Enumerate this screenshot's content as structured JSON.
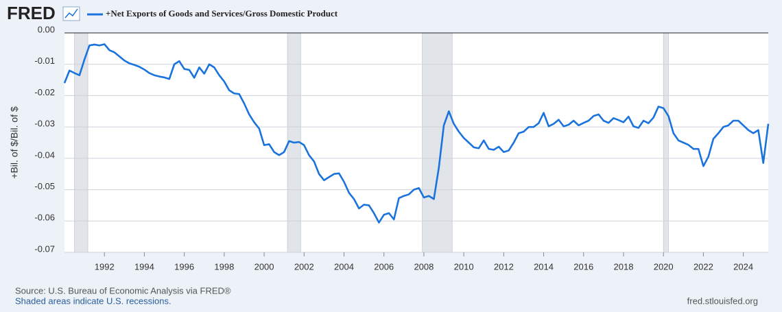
{
  "chart_data": {
    "type": "line",
    "logo": "FRED",
    "y_label": "+Bil. of $/Bil. of $",
    "source": "Source: U.S. Bureau of Economic Analysis via FRED®",
    "note": "Shaded areas indicate U.S. recessions.",
    "site": "fred.stlouisfed.org",
    "x": [
      1990,
      1990.25,
      1990.5,
      1990.75,
      1991,
      1991.25,
      1991.5,
      1991.75,
      1992,
      1992.25,
      1992.5,
      1992.75,
      1993,
      1993.25,
      1993.5,
      1993.75,
      1994,
      1994.25,
      1994.5,
      1994.75,
      1995,
      1995.25,
      1995.5,
      1995.75,
      1996,
      1996.25,
      1996.5,
      1996.75,
      1997,
      1997.25,
      1997.5,
      1997.75,
      1998,
      1998.25,
      1998.5,
      1998.75,
      1999,
      1999.25,
      1999.5,
      1999.75,
      2000,
      2000.25,
      2000.5,
      2000.75,
      2001,
      2001.25,
      2001.5,
      2001.75,
      2002,
      2002.25,
      2002.5,
      2002.75,
      2003,
      2003.25,
      2003.5,
      2003.75,
      2004,
      2004.25,
      2004.5,
      2004.75,
      2005,
      2005.25,
      2005.5,
      2005.75,
      2006,
      2006.25,
      2006.5,
      2006.75,
      2007,
      2007.25,
      2007.5,
      2007.75,
      2008,
      2008.25,
      2008.5,
      2008.75,
      2009,
      2009.25,
      2009.5,
      2009.75,
      2010,
      2010.25,
      2010.5,
      2010.75,
      2011,
      2011.25,
      2011.5,
      2011.75,
      2012,
      2012.25,
      2012.5,
      2012.75,
      2013,
      2013.25,
      2013.5,
      2013.75,
      2014,
      2014.25,
      2014.5,
      2014.75,
      2015,
      2015.25,
      2015.5,
      2015.75,
      2016,
      2016.25,
      2016.5,
      2016.75,
      2017,
      2017.25,
      2017.5,
      2017.75,
      2018,
      2018.25,
      2018.5,
      2018.75,
      2019,
      2019.25,
      2019.5,
      2019.75,
      2020,
      2020.25,
      2020.5,
      2020.75,
      2021,
      2021.25,
      2021.5,
      2021.75,
      2022,
      2022.25,
      2022.5,
      2022.75,
      2023,
      2023.25,
      2023.5,
      2023.75,
      2024,
      2024.25,
      2024.5,
      2024.75,
      2025,
      2025.25
    ],
    "series": [
      {
        "name": "+Net Exports of Goods and Services/Gross Domestic Product",
        "color": "#1a73dd",
        "values": [
          -0.016,
          -0.012,
          -0.0128,
          -0.0135,
          -0.0085,
          -0.004,
          -0.0037,
          -0.004,
          -0.0036,
          -0.0055,
          -0.0062,
          -0.0075,
          -0.0088,
          -0.0097,
          -0.0102,
          -0.0108,
          -0.0117,
          -0.0128,
          -0.0135,
          -0.0139,
          -0.0142,
          -0.0147,
          -0.01,
          -0.009,
          -0.0115,
          -0.0118,
          -0.0143,
          -0.011,
          -0.013,
          -0.01,
          -0.011,
          -0.0135,
          -0.0155,
          -0.0183,
          -0.0193,
          -0.0195,
          -0.0225,
          -0.026,
          -0.0285,
          -0.0305,
          -0.0358,
          -0.0355,
          -0.038,
          -0.039,
          -0.038,
          -0.0345,
          -0.035,
          -0.0348,
          -0.0358,
          -0.039,
          -0.041,
          -0.045,
          -0.047,
          -0.046,
          -0.045,
          -0.0448,
          -0.0475,
          -0.051,
          -0.053,
          -0.056,
          -0.0548,
          -0.055,
          -0.0575,
          -0.0605,
          -0.058,
          -0.0575,
          -0.0595,
          -0.0527,
          -0.052,
          -0.0515,
          -0.05,
          -0.0495,
          -0.0525,
          -0.052,
          -0.053,
          -0.043,
          -0.0295,
          -0.025,
          -0.029,
          -0.0315,
          -0.0335,
          -0.035,
          -0.0365,
          -0.0368,
          -0.0343,
          -0.037,
          -0.0373,
          -0.0363,
          -0.038,
          -0.0375,
          -0.035,
          -0.032,
          -0.0315,
          -0.03,
          -0.03,
          -0.0288,
          -0.0255,
          -0.0298,
          -0.029,
          -0.0277,
          -0.0298,
          -0.0293,
          -0.028,
          -0.0295,
          -0.0287,
          -0.028,
          -0.0265,
          -0.026,
          -0.028,
          -0.0287,
          -0.0272,
          -0.0278,
          -0.0285,
          -0.0267,
          -0.0298,
          -0.0303,
          -0.028,
          -0.0288,
          -0.027,
          -0.0235,
          -0.024,
          -0.0265,
          -0.032,
          -0.0343,
          -0.035,
          -0.0357,
          -0.037,
          -0.037,
          -0.0425,
          -0.0395,
          -0.0338,
          -0.032,
          -0.03,
          -0.0295,
          -0.028,
          -0.028,
          -0.0295,
          -0.031,
          -0.032,
          -0.031,
          -0.0415,
          -0.029
        ]
      }
    ],
    "recessions": [
      [
        1990.5,
        1991.17
      ],
      [
        2001.17,
        2001.83
      ],
      [
        2007.92,
        2009.42
      ],
      [
        2020.0,
        2020.25
      ]
    ],
    "recession_color": "#e1e5ea",
    "xlim": [
      1990,
      2025.25
    ],
    "xticks": [
      1992,
      1994,
      1996,
      1998,
      2000,
      2002,
      2004,
      2006,
      2008,
      2010,
      2012,
      2014,
      2016,
      2018,
      2020,
      2022,
      2024
    ],
    "ylim": [
      -0.07,
      0
    ],
    "yticks": [
      {
        "value": 0,
        "label": "0.00"
      },
      -0.01,
      -0.02,
      -0.03,
      -0.04,
      -0.05,
      -0.06,
      -0.07
    ],
    "grid": true
  }
}
